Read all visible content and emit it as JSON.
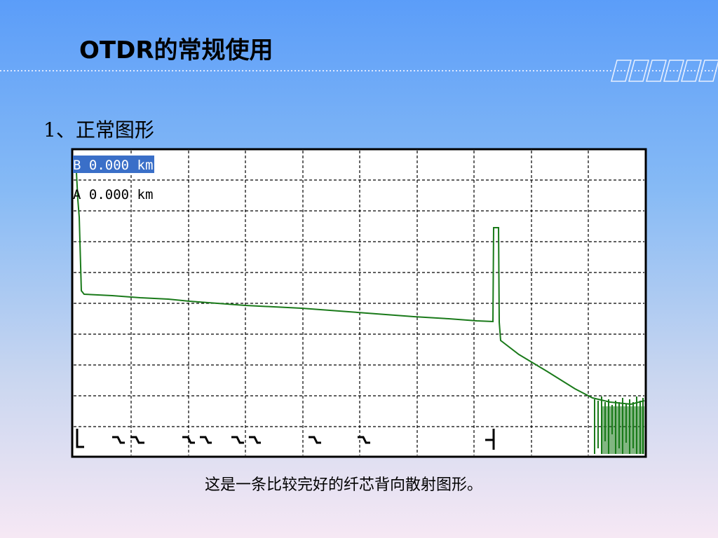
{
  "slide": {
    "title": "OTDR的常规使用",
    "heading": "1、正常图形",
    "caption": "这是一条比较完好的纤芯背向散射图形。"
  },
  "trace": {
    "cursor_b": "B 0.000 km",
    "cursor_a": "A 0.000 km"
  }
}
